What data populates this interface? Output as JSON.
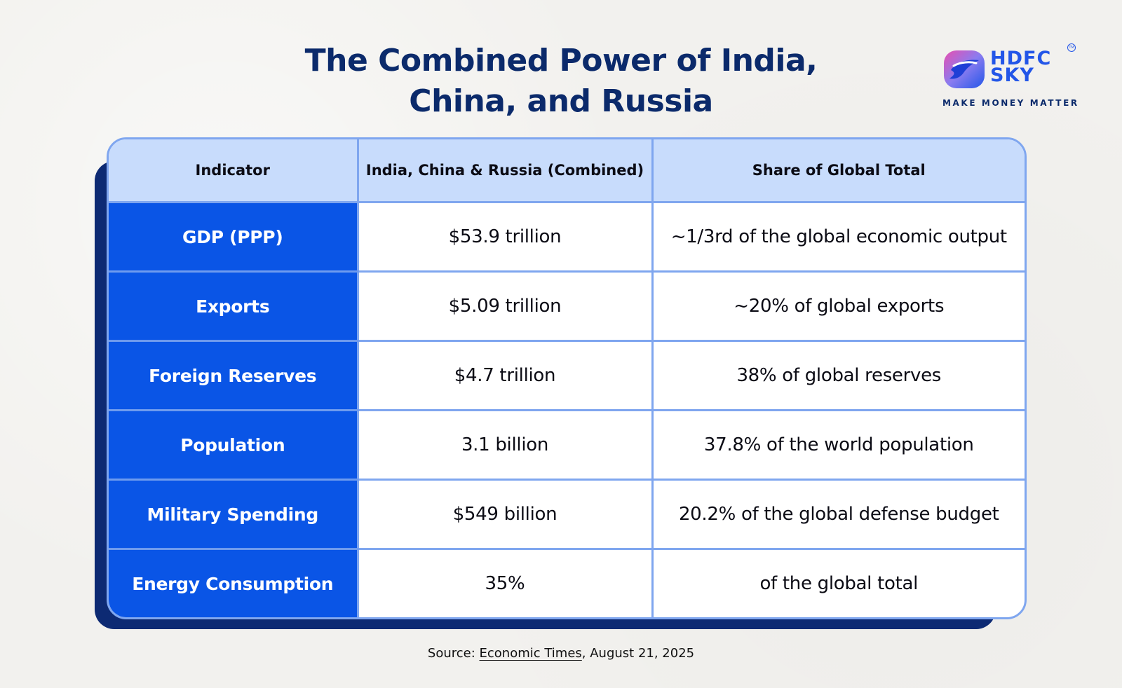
{
  "title": {
    "line1": "The Combined Power of India,",
    "line2": "China, and Russia"
  },
  "logo": {
    "brand_line1": "HDFC",
    "brand_line2": "SKY",
    "trademark": "TM",
    "tagline": "MAKE MONEY MATTER",
    "colors": {
      "primary": "#2356e8",
      "accent": "#e84fb0"
    }
  },
  "table": {
    "headers": [
      "Indicator",
      "India, China & Russia (Combined)",
      "Share of Global Total"
    ],
    "rows": [
      {
        "indicator": "GDP (PPP)",
        "combined": "$53.9 trillion",
        "share": "~1/3rd of the global economic output"
      },
      {
        "indicator": "Exports",
        "combined": "$5.09 trillion",
        "share": "~20% of global exports"
      },
      {
        "indicator": "Foreign Reserves",
        "combined": "$4.7 trillion",
        "share": "38% of global reserves"
      },
      {
        "indicator": "Population",
        "combined": "3.1 billion",
        "share": "37.8% of the world population"
      },
      {
        "indicator": "Military Spending",
        "combined": "$549 billion",
        "share": "20.2% of the global defense budget"
      },
      {
        "indicator": "Energy Consumption",
        "combined": "35%",
        "share": "of the global total"
      }
    ],
    "colors": {
      "header_bg": "#c8dcfc",
      "indicator_bg": "#0a55e6",
      "border": "#7fa6ef",
      "shadow": "#0d2a73"
    }
  },
  "source": {
    "prefix": "Source: ",
    "link_text": "Economic Times",
    "suffix": ", August 21, 2025"
  }
}
